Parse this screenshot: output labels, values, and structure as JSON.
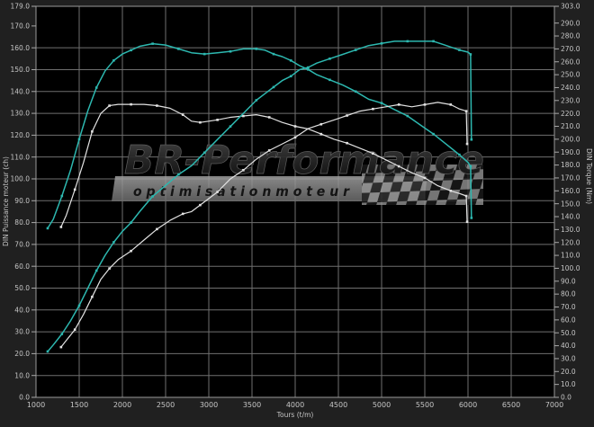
{
  "watermark": {
    "brand": "BR-Performance",
    "tagline": "o p t i m i s a t i o n   m o t e u r"
  },
  "chart_data": {
    "type": "line",
    "title": "",
    "x_axis": {
      "title": "Tours (t/m)",
      "min": 1000,
      "max": 7000,
      "ticks": [
        1000,
        1500,
        2000,
        2500,
        3000,
        3500,
        4000,
        4500,
        5000,
        5500,
        6000,
        6500,
        7000
      ],
      "grid": true
    },
    "left_axis": {
      "title": "DIN Puissance moteur (ch)",
      "min": 0,
      "max": 179,
      "ticks": [
        179,
        170,
        160,
        150,
        140,
        130,
        120,
        110,
        100,
        90,
        80,
        70,
        60,
        50,
        40,
        30,
        20,
        10,
        0
      ],
      "grid_step": 10
    },
    "right_axis": {
      "title": "DIN Torque (Nm)",
      "min": 0,
      "max": 303,
      "ticks": [
        303,
        290,
        280,
        270,
        260,
        250,
        240,
        230,
        220,
        210,
        200,
        190,
        180,
        170,
        160,
        150,
        140,
        130,
        120,
        110,
        100,
        90,
        80,
        70,
        60,
        50,
        40,
        30,
        20,
        10,
        0
      ]
    },
    "colors": {
      "cyan_curve": "#2db8b0",
      "white_curve": "#e2e2e2",
      "grid": "#6f6f6f",
      "plot_border": "#9a9a9a",
      "plot_bg": "#000000",
      "outer_bg": "#202020",
      "label": "#c6c6c6"
    },
    "series": [
      {
        "name": "torque-cyan",
        "axis": "right",
        "color_key": "cyan_curve",
        "points": [
          [
            1135,
            131
          ],
          [
            1200,
            138
          ],
          [
            1300,
            156
          ],
          [
            1400,
            176
          ],
          [
            1500,
            200
          ],
          [
            1600,
            222
          ],
          [
            1700,
            240
          ],
          [
            1800,
            253
          ],
          [
            1900,
            261
          ],
          [
            2000,
            266
          ],
          [
            2100,
            269
          ],
          [
            2200,
            272
          ],
          [
            2350,
            274
          ],
          [
            2500,
            273
          ],
          [
            2650,
            270
          ],
          [
            2800,
            267
          ],
          [
            2950,
            266
          ],
          [
            3100,
            267
          ],
          [
            3250,
            268
          ],
          [
            3400,
            270
          ],
          [
            3550,
            270
          ],
          [
            3650,
            269
          ],
          [
            3750,
            266
          ],
          [
            3850,
            264
          ],
          [
            3950,
            261
          ],
          [
            4050,
            257
          ],
          [
            4150,
            254
          ],
          [
            4250,
            250
          ],
          [
            4400,
            246
          ],
          [
            4550,
            242
          ],
          [
            4700,
            237
          ],
          [
            4850,
            231
          ],
          [
            5000,
            228
          ],
          [
            5150,
            223
          ],
          [
            5300,
            218
          ],
          [
            5450,
            211
          ],
          [
            5600,
            204
          ],
          [
            5750,
            196
          ],
          [
            5900,
            188
          ],
          [
            6000,
            182
          ],
          [
            6030,
            179
          ],
          [
            6040,
            139
          ]
        ]
      },
      {
        "name": "torque-white",
        "axis": "right",
        "color_key": "white_curve",
        "points": [
          [
            1290,
            132
          ],
          [
            1350,
            141
          ],
          [
            1450,
            161
          ],
          [
            1550,
            182
          ],
          [
            1650,
            206
          ],
          [
            1750,
            220
          ],
          [
            1850,
            226
          ],
          [
            1950,
            227
          ],
          [
            2100,
            227
          ],
          [
            2250,
            227
          ],
          [
            2400,
            226
          ],
          [
            2550,
            224
          ],
          [
            2700,
            219
          ],
          [
            2800,
            214
          ],
          [
            2900,
            213
          ],
          [
            3000,
            214
          ],
          [
            3100,
            215
          ],
          [
            3250,
            217
          ],
          [
            3400,
            218
          ],
          [
            3550,
            219
          ],
          [
            3700,
            217
          ],
          [
            3850,
            213
          ],
          [
            4000,
            210
          ],
          [
            4150,
            208
          ],
          [
            4300,
            204
          ],
          [
            4450,
            200
          ],
          [
            4600,
            197
          ],
          [
            4750,
            193
          ],
          [
            4900,
            189
          ],
          [
            5050,
            184
          ],
          [
            5200,
            179
          ],
          [
            5350,
            174
          ],
          [
            5500,
            170
          ],
          [
            5650,
            164
          ],
          [
            5800,
            160
          ],
          [
            5900,
            158
          ],
          [
            5980,
            156
          ],
          [
            5990,
            136
          ]
        ]
      },
      {
        "name": "power-white",
        "axis": "left",
        "color_key": "white_curve",
        "points": [
          [
            1290,
            23
          ],
          [
            1350,
            26
          ],
          [
            1450,
            31
          ],
          [
            1550,
            38
          ],
          [
            1650,
            46
          ],
          [
            1750,
            54
          ],
          [
            1850,
            59
          ],
          [
            1950,
            63
          ],
          [
            2100,
            67
          ],
          [
            2250,
            72
          ],
          [
            2400,
            77
          ],
          [
            2550,
            81
          ],
          [
            2700,
            84
          ],
          [
            2800,
            85
          ],
          [
            2900,
            88
          ],
          [
            3000,
            91
          ],
          [
            3100,
            94
          ],
          [
            3250,
            100
          ],
          [
            3400,
            104
          ],
          [
            3550,
            109
          ],
          [
            3700,
            113
          ],
          [
            3850,
            116
          ],
          [
            4000,
            119
          ],
          [
            4150,
            123
          ],
          [
            4300,
            125
          ],
          [
            4450,
            127
          ],
          [
            4600,
            129
          ],
          [
            4750,
            131
          ],
          [
            4900,
            132
          ],
          [
            5050,
            133
          ],
          [
            5200,
            134
          ],
          [
            5350,
            133
          ],
          [
            5500,
            134
          ],
          [
            5650,
            135
          ],
          [
            5800,
            134
          ],
          [
            5900,
            132
          ],
          [
            5980,
            131
          ],
          [
            5990,
            116
          ]
        ]
      },
      {
        "name": "power-cyan",
        "axis": "left",
        "color_key": "cyan_curve",
        "points": [
          [
            1135,
            21
          ],
          [
            1200,
            24
          ],
          [
            1300,
            29
          ],
          [
            1400,
            35
          ],
          [
            1500,
            42
          ],
          [
            1600,
            50
          ],
          [
            1700,
            58
          ],
          [
            1800,
            65
          ],
          [
            1900,
            71
          ],
          [
            2000,
            76
          ],
          [
            2100,
            80
          ],
          [
            2200,
            85
          ],
          [
            2350,
            92
          ],
          [
            2500,
            97
          ],
          [
            2650,
            102
          ],
          [
            2800,
            106
          ],
          [
            2950,
            112
          ],
          [
            3100,
            118
          ],
          [
            3250,
            124
          ],
          [
            3400,
            130
          ],
          [
            3550,
            136
          ],
          [
            3650,
            139
          ],
          [
            3750,
            142
          ],
          [
            3850,
            145
          ],
          [
            3950,
            147
          ],
          [
            4050,
            150
          ],
          [
            4150,
            151
          ],
          [
            4250,
            153
          ],
          [
            4400,
            155
          ],
          [
            4550,
            157
          ],
          [
            4700,
            159
          ],
          [
            4850,
            161
          ],
          [
            5000,
            162
          ],
          [
            5150,
            163
          ],
          [
            5300,
            163
          ],
          [
            5450,
            163
          ],
          [
            5600,
            163
          ],
          [
            5750,
            161
          ],
          [
            5900,
            159
          ],
          [
            6000,
            158
          ],
          [
            6030,
            157
          ],
          [
            6040,
            118
          ]
        ]
      }
    ]
  }
}
